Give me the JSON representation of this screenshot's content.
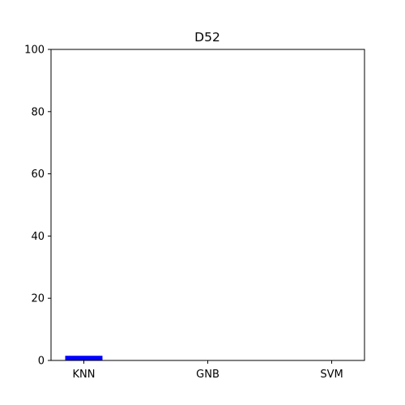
{
  "chart_data": {
    "type": "bar",
    "title": "D52",
    "xlabel": "",
    "ylabel": "",
    "categories": [
      "KNN",
      "GNB",
      "SVM"
    ],
    "values": [
      1.5,
      0,
      0
    ],
    "ylim": [
      0,
      100
    ],
    "yticks": [
      0,
      20,
      40,
      60,
      80,
      100
    ],
    "grid": false,
    "bar_color": "#0000ff"
  }
}
